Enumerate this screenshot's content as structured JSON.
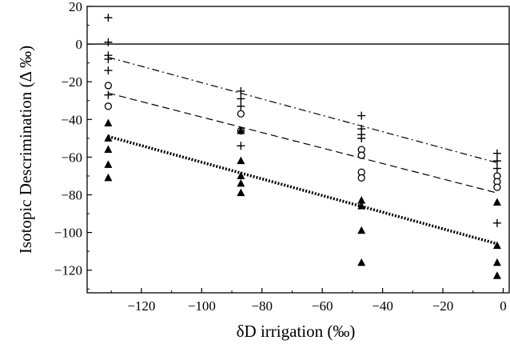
{
  "chart_data": {
    "type": "scatter",
    "xlabel": "δD irrigation (‰)",
    "ylabel": "Isotopic Descrimination (Δ ‰)",
    "xlim": [
      -138,
      2
    ],
    "ylim": [
      -132,
      20
    ],
    "xticks": [
      -120,
      -100,
      -80,
      -60,
      -40,
      -20,
      0
    ],
    "yticks": [
      20,
      0,
      -20,
      -40,
      -60,
      -80,
      -100,
      -120
    ],
    "grid": false,
    "legend": "none",
    "series": [
      {
        "marker": "plus",
        "points": [
          [
            -131,
            14
          ],
          [
            -131,
            1
          ],
          [
            -131,
            -6
          ],
          [
            -131,
            -8
          ],
          [
            -131,
            -14
          ],
          [
            -131,
            -27
          ],
          [
            -87,
            -25
          ],
          [
            -87,
            -29
          ],
          [
            -87,
            -33
          ],
          [
            -87,
            -54
          ],
          [
            -47,
            -38
          ],
          [
            -47,
            -45
          ],
          [
            -47,
            -48
          ],
          [
            -47,
            -50
          ],
          [
            -2,
            -58
          ],
          [
            -2,
            -62
          ],
          [
            -2,
            -66
          ],
          [
            -2,
            -95
          ]
        ]
      },
      {
        "marker": "circle",
        "points": [
          [
            -131,
            -22
          ],
          [
            -131,
            -33
          ],
          [
            -87,
            -37
          ],
          [
            -87,
            -46
          ],
          [
            -47,
            -56
          ],
          [
            -47,
            -59
          ],
          [
            -47,
            -68
          ],
          [
            -47,
            -71
          ],
          [
            -2,
            -70
          ],
          [
            -2,
            -73
          ],
          [
            -2,
            -76
          ]
        ]
      },
      {
        "marker": "triangle",
        "points": [
          [
            -131,
            -42
          ],
          [
            -131,
            -50
          ],
          [
            -131,
            -56
          ],
          [
            -131,
            -64
          ],
          [
            -131,
            -71
          ],
          [
            -87,
            -46
          ],
          [
            -87,
            -62
          ],
          [
            -87,
            -70
          ],
          [
            -87,
            -74
          ],
          [
            -87,
            -79
          ],
          [
            -47,
            -83
          ],
          [
            -47,
            -86
          ],
          [
            -47,
            -99
          ],
          [
            -47,
            -116
          ],
          [
            -2,
            -84
          ],
          [
            -2,
            -107
          ],
          [
            -2,
            -116
          ],
          [
            -2,
            -123
          ]
        ]
      }
    ],
    "lines": [
      {
        "style": "solid",
        "from": [
          -138,
          0
        ],
        "to": [
          2,
          0
        ]
      },
      {
        "style": "dashdot",
        "from": [
          -131,
          -7
        ],
        "to": [
          -2,
          -63
        ]
      },
      {
        "style": "dashed",
        "from": [
          -131,
          -26
        ],
        "to": [
          -2,
          -79
        ]
      },
      {
        "style": "dotted",
        "from": [
          -131,
          -49
        ],
        "to": [
          -2,
          -106
        ]
      }
    ]
  }
}
